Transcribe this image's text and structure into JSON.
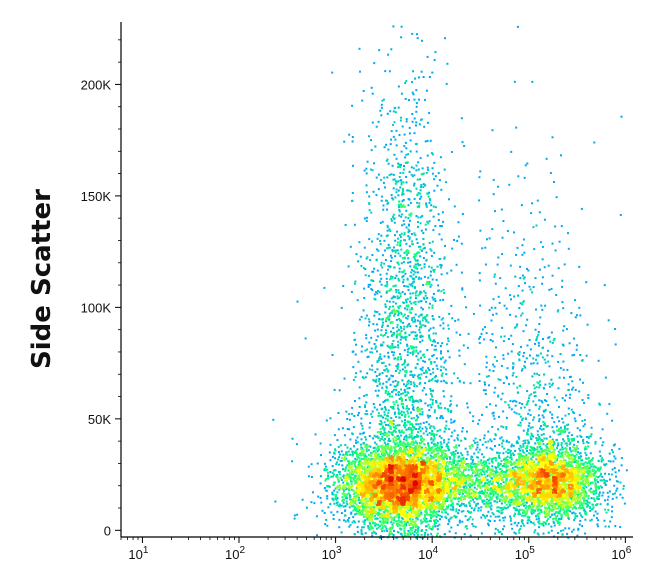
{
  "chart_data": {
    "type": "scatter",
    "subtype": "flow-cytometry density dot plot",
    "title": "",
    "xlabel": "",
    "ylabel": "Side Scatter",
    "x_scale": "log",
    "xlim": [
      6,
      1200000
    ],
    "ylim": [
      -3000,
      228000
    ],
    "y_scale": "linear",
    "grid": false,
    "legend": "none",
    "x_ticks": [
      {
        "value": 10,
        "base": "10",
        "exp": "1"
      },
      {
        "value": 100,
        "base": "10",
        "exp": "2"
      },
      {
        "value": 1000,
        "base": "10",
        "exp": "3"
      },
      {
        "value": 10000,
        "base": "10",
        "exp": "4"
      },
      {
        "value": 100000,
        "base": "10",
        "exp": "5"
      },
      {
        "value": 1000000,
        "base": "10",
        "exp": "6"
      }
    ],
    "y_ticks": [
      {
        "value": 0,
        "label": "0"
      },
      {
        "value": 50000,
        "label": "50K"
      },
      {
        "value": 100000,
        "label": "100K"
      },
      {
        "value": 150000,
        "label": "150K"
      },
      {
        "value": 200000,
        "label": "200K"
      }
    ],
    "populations": [
      {
        "x_center": 4500,
        "y_center": 21000,
        "x_spread_log10": 0.32,
        "y_spread": 9000,
        "points": 5200
      },
      {
        "x_center": 170000,
        "y_center": 22500,
        "x_spread_log10": 0.26,
        "y_spread": 8000,
        "points": 2800
      },
      {
        "x_center": 35000,
        "y_center": 22000,
        "x_spread_log10": 0.35,
        "y_spread": 6500,
        "points": 900
      },
      {
        "x_center": 5000,
        "y_center": 90000,
        "x_spread_log10": 0.22,
        "y_spread": 55000,
        "points": 1700
      },
      {
        "x_center": 120000,
        "y_center": 60000,
        "x_spread_log10": 0.3,
        "y_spread": 40000,
        "points": 500
      },
      {
        "x_center": 20000,
        "y_center": 60000,
        "x_spread_log10": 0.7,
        "y_spread": 60000,
        "points": 450
      }
    ],
    "colors": {
      "low": "#0000cc",
      "mid_low": "#00a0ff",
      "mid": "#00ff80",
      "mid_high": "#ffff00",
      "high": "#ff8000",
      "peak": "#e00000"
    }
  }
}
